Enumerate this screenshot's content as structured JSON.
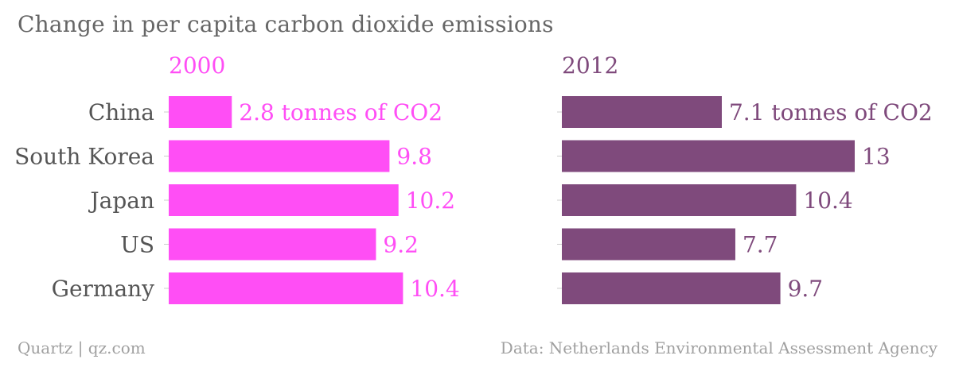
{
  "title": "Change in per capita carbon dioxide emissions",
  "footer": {
    "source_left": "Quartz | qz.com",
    "source_right": "Data: Netherlands Environmental Assessment Agency"
  },
  "colors": {
    "series_2000": "#ff4ef5",
    "series_2012": "#7f4a7c",
    "category_text": "#555555",
    "muted_text": "#a0a0a0",
    "tick": "#cccccc"
  },
  "chart_data": [
    {
      "type": "bar",
      "orientation": "horizontal",
      "title": "2000",
      "categories": [
        "China",
        "South Korea",
        "Japan",
        "US",
        "Germany"
      ],
      "values": [
        2.8,
        9.8,
        10.2,
        9.2,
        10.4
      ],
      "value_labels": [
        "2.8 tonnes of CO2",
        "9.8",
        "10.2",
        "9.2",
        "10.4"
      ],
      "xlim": [
        0,
        13
      ],
      "grid": false,
      "legend": "none"
    },
    {
      "type": "bar",
      "orientation": "horizontal",
      "title": "2012",
      "categories": [
        "China",
        "South Korea",
        "Japan",
        "US",
        "Germany"
      ],
      "values": [
        7.1,
        13,
        10.4,
        7.7,
        9.7
      ],
      "value_labels": [
        "7.1 tonnes of CO2",
        "13",
        "10.4",
        "7.7",
        "9.7"
      ],
      "xlim": [
        0,
        13
      ],
      "grid": false,
      "legend": "none"
    }
  ]
}
